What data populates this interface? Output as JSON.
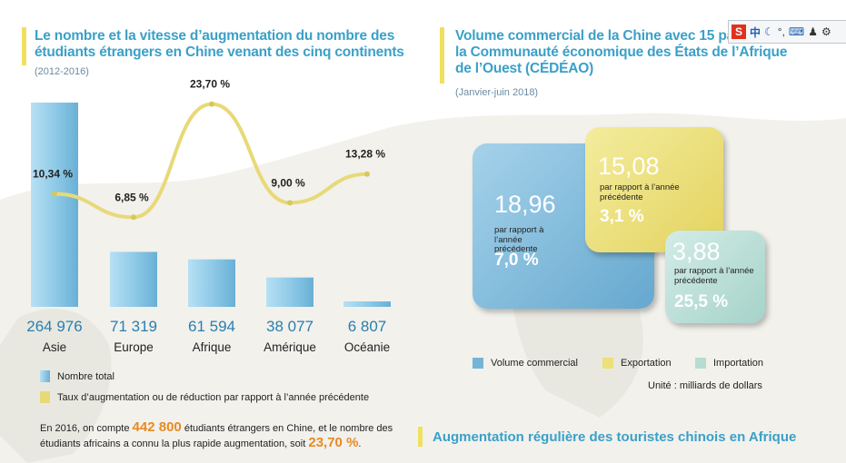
{
  "left": {
    "title_line1": "Le nombre et la vitesse d’augmentation du nombre des",
    "title_line2": "étudiants étrangers en Chine venant des cinq continents",
    "subtitle": "(2012-2016)",
    "legend": {
      "total": "Nombre total",
      "rate": "Taux d’augmentation ou de réduction par rapport à l’année précédente"
    },
    "note": {
      "pre": "En 2016, on compte",
      "count": "442 800",
      "mid": "étudiants étrangers en Chine, et le nombre des étudiants africains a connu la plus rapide augmentation, soit",
      "pct": "23,70 %",
      "end": "."
    }
  },
  "chart_data": [
    {
      "type": "bar",
      "categories": [
        "Asie",
        "Europe",
        "Afrique",
        "Amérique",
        "Océanie"
      ],
      "series": [
        {
          "name": "Nombre total",
          "values": [
            264976,
            71319,
            61594,
            38077,
            6807
          ],
          "labels": [
            "264 976",
            "71 319",
            "61 594",
            "38 077",
            "6 807"
          ]
        },
        {
          "name": "Taux d’augmentation ou de réduction par rapport à l’année précédente",
          "type": "line",
          "values": [
            10.34,
            6.85,
            23.7,
            9.0,
            13.28
          ],
          "labels": [
            "10,34 %",
            "6,85 %",
            "23,70 %",
            "9,00 %",
            "13,28 %"
          ]
        }
      ],
      "colors": {
        "bar": "#8cc8e6",
        "line": "#e8d978"
      }
    },
    {
      "type": "other",
      "series": [
        {
          "name": "Volume commercial",
          "value": 18.96,
          "value_label": "18,96",
          "note": "par rapport à l’année précédente",
          "change": "7,0 %",
          "color": "#74b4d6"
        },
        {
          "name": "Exportation",
          "value": 15.08,
          "value_label": "15,08",
          "note": "par rapport à l’année précédente",
          "change": "3,1 %",
          "color": "#ece07a"
        },
        {
          "name": "Importation",
          "value": 3.88,
          "value_label": "3,88",
          "note": "par rapport à l’année précédente",
          "change": "25,5 %",
          "color": "#b6dcd4"
        }
      ]
    }
  ],
  "right": {
    "title_line1": "Volume commercial de la Chine avec 15 pa",
    "title_line2": "la Communauté économique des États de l’Afrique",
    "title_line3": "de l’Ouest (CÉDÉAO)",
    "subtitle": "(Janvier-juin 2018)",
    "unit": "Unité : milliards de dollars"
  },
  "bottom_title": "Augmentation régulière des touristes chinois en Afrique",
  "ime": {
    "s": "S",
    "lang": "中"
  }
}
